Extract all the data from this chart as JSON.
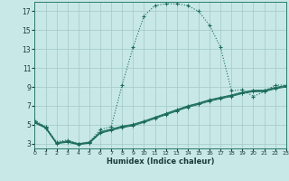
{
  "xlabel": "Humidex (Indice chaleur)",
  "background_color": "#c8e8e8",
  "grid_color": "#a8cccc",
  "line_color": "#1a6b5a",
  "xlim": [
    0,
    23
  ],
  "ylim": [
    2.5,
    18.0
  ],
  "xticks": [
    0,
    1,
    2,
    3,
    4,
    5,
    6,
    7,
    8,
    9,
    10,
    11,
    12,
    13,
    14,
    15,
    16,
    17,
    18,
    19,
    20,
    21,
    22,
    23
  ],
  "yticks": [
    3,
    5,
    7,
    9,
    11,
    13,
    15,
    17
  ],
  "main_x": [
    0,
    1,
    2,
    3,
    4,
    5,
    6,
    7,
    8,
    9,
    10,
    11,
    12,
    13,
    14,
    15,
    16,
    17,
    18,
    19,
    20,
    21,
    22,
    23
  ],
  "main_y": [
    5.5,
    4.8,
    3.2,
    3.4,
    3.0,
    3.2,
    4.5,
    4.8,
    9.2,
    13.2,
    16.5,
    17.6,
    17.8,
    17.8,
    17.6,
    17.0,
    15.5,
    13.2,
    8.6,
    8.7,
    8.0,
    8.5,
    9.2,
    9.2
  ],
  "low1_x": [
    0,
    1,
    2,
    3,
    4,
    5,
    6,
    7,
    8,
    9,
    10,
    11,
    12,
    13,
    14,
    15,
    16,
    17,
    18,
    19,
    20,
    21,
    22,
    23
  ],
  "low1_y": [
    5.2,
    4.65,
    3.0,
    3.15,
    2.9,
    3.05,
    4.1,
    4.4,
    4.7,
    4.9,
    5.25,
    5.65,
    6.05,
    6.45,
    6.85,
    7.15,
    7.5,
    7.75,
    8.0,
    8.3,
    8.5,
    8.5,
    8.8,
    9.0
  ],
  "low2_x": [
    0,
    1,
    2,
    3,
    4,
    5,
    6,
    7,
    8,
    9,
    10,
    11,
    12,
    13,
    14,
    15,
    16,
    17,
    18,
    19,
    20,
    21,
    22,
    23
  ],
  "low2_y": [
    5.28,
    4.7,
    3.05,
    3.22,
    2.95,
    3.1,
    4.18,
    4.48,
    4.78,
    4.98,
    5.33,
    5.73,
    6.13,
    6.53,
    6.93,
    7.23,
    7.58,
    7.83,
    8.08,
    8.38,
    8.58,
    8.58,
    8.88,
    9.08
  ],
  "low3_x": [
    0,
    1,
    2,
    3,
    4,
    5,
    6,
    7,
    8,
    9,
    10,
    11,
    12,
    13,
    14,
    15,
    16,
    17,
    18,
    19,
    20,
    21,
    22,
    23
  ],
  "low3_y": [
    5.35,
    4.75,
    3.1,
    3.28,
    3.0,
    3.15,
    4.25,
    4.55,
    4.85,
    5.05,
    5.4,
    5.8,
    6.2,
    6.6,
    7.0,
    7.3,
    7.65,
    7.9,
    8.15,
    8.45,
    8.65,
    8.65,
    8.95,
    9.15
  ]
}
